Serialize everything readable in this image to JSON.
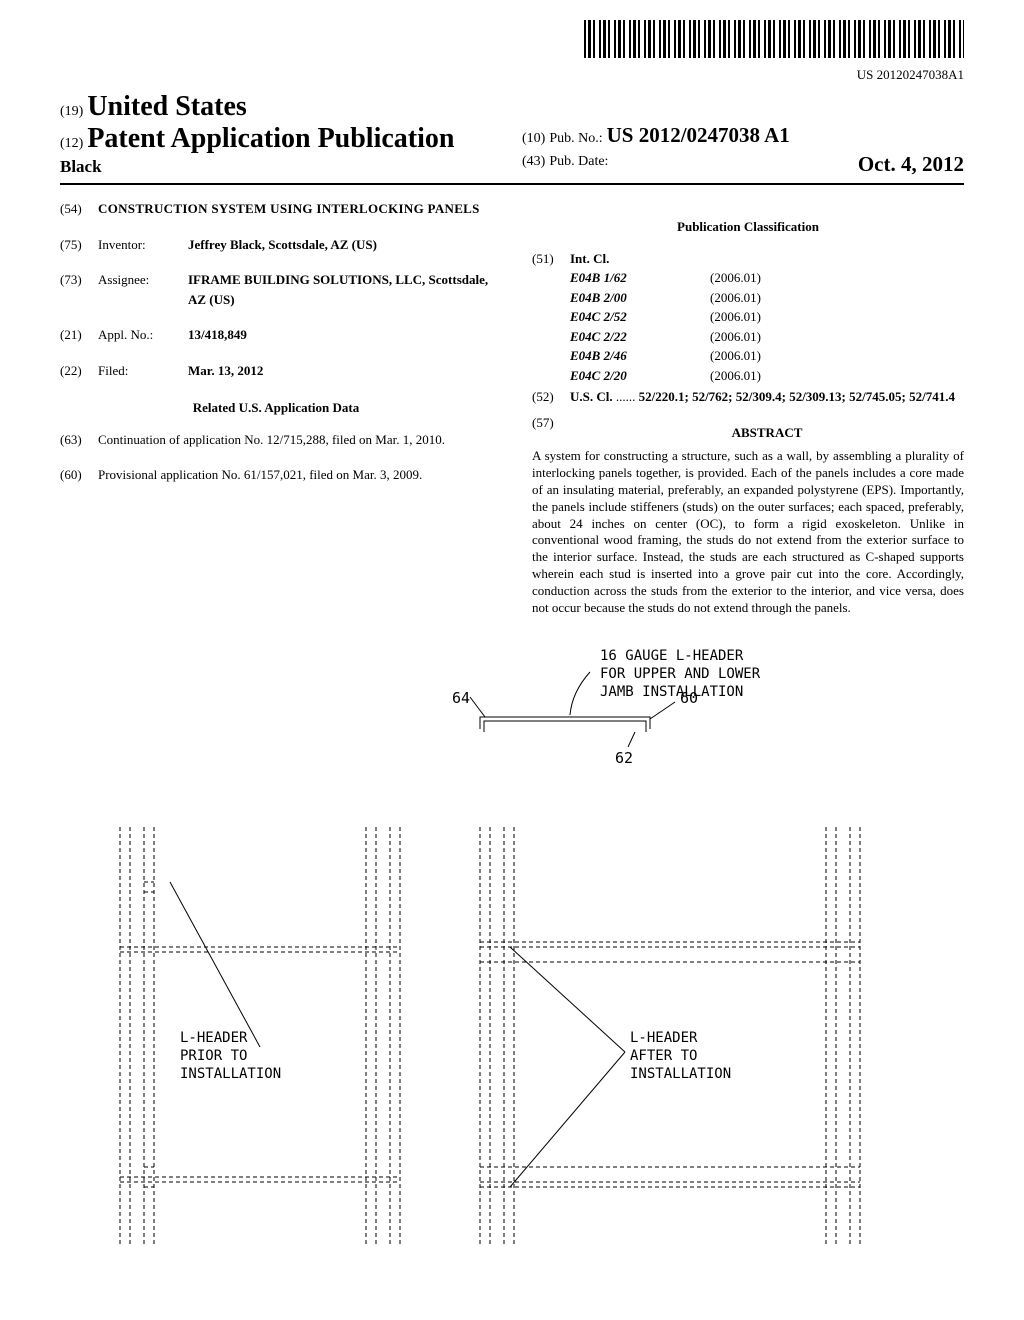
{
  "barcode_number": "US 20120247038A1",
  "header": {
    "code19": "(19)",
    "country": "United States",
    "code12": "(12)",
    "pub_type": "Patent Application Publication",
    "applicant_line": "Black",
    "code10": "(10)",
    "pub_no_label": "Pub. No.:",
    "pub_no_value": "US 2012/0247038 A1",
    "code43": "(43)",
    "pub_date_label": "Pub. Date:",
    "pub_date_value": "Oct. 4, 2012"
  },
  "left_col": {
    "title": {
      "code": "(54)",
      "text": "CONSTRUCTION SYSTEM USING INTERLOCKING PANELS"
    },
    "inventor": {
      "code": "(75)",
      "label": "Inventor:",
      "value": "Jeffrey Black, Scottsdale, AZ (US)"
    },
    "assignee": {
      "code": "(73)",
      "label": "Assignee:",
      "value": "IFRAME BUILDING SOLUTIONS, LLC, Scottsdale, AZ (US)"
    },
    "appl_no": {
      "code": "(21)",
      "label": "Appl. No.:",
      "value": "13/418,849"
    },
    "filed": {
      "code": "(22)",
      "label": "Filed:",
      "value": "Mar. 13, 2012"
    },
    "related_heading": "Related U.S. Application Data",
    "continuation": {
      "code": "(63)",
      "text": "Continuation of application No. 12/715,288, filed on Mar. 1, 2010."
    },
    "provisional": {
      "code": "(60)",
      "text": "Provisional application No. 61/157,021, filed on Mar. 3, 2009."
    }
  },
  "right_col": {
    "class_heading": "Publication Classification",
    "int_cl": {
      "code": "(51)",
      "label": "Int. Cl.",
      "items": [
        {
          "class": "E04B  1/62",
          "date": "(2006.01)"
        },
        {
          "class": "E04B  2/00",
          "date": "(2006.01)"
        },
        {
          "class": "E04C  2/52",
          "date": "(2006.01)"
        },
        {
          "class": "E04C  2/22",
          "date": "(2006.01)"
        },
        {
          "class": "E04B  2/46",
          "date": "(2006.01)"
        },
        {
          "class": "E04C  2/20",
          "date": "(2006.01)"
        }
      ]
    },
    "us_cl": {
      "code": "(52)",
      "label": "U.S. Cl.",
      "value": "52/220.1; 52/762; 52/309.4; 52/309.13; 52/745.05; 52/741.4"
    },
    "abstract": {
      "code": "(57)",
      "heading": "ABSTRACT",
      "text": "A system for constructing a structure, such as a wall, by assembling a plurality of interlocking panels together, is provided. Each of the panels includes a core made of an insulating material, preferably, an expanded polystyrene (EPS). Importantly, the panels include stiffeners (studs) on the outer surfaces; each spaced, preferably, about 24 inches on center (OC), to form a rigid exoskeleton. Unlike in conventional wood framing, the studs do not extend from the exterior surface to the interior surface. Instead, the studs are each structured as C-shaped supports wherein each stud is inserted into a grove pair cut into the core. Accordingly, conduction across the studs from the exterior to the interior, and vice versa, does not occur because the studs do not extend through the panels."
    }
  },
  "figure": {
    "callout_top": "16 GAUGE L-HEADER\nFOR UPPER AND LOWER\nJAMB INSTALLATION",
    "ref_64": "64",
    "ref_60": "60",
    "ref_62": "62",
    "label_left": "L-HEADER\nPRIOR TO\nINSTALLATION",
    "label_right": "L-HEADER\nAFTER TO\nINSTALLATION",
    "header_svg": {
      "stroke": "#000000",
      "stroke_width": 1,
      "dash": "4 3"
    }
  }
}
